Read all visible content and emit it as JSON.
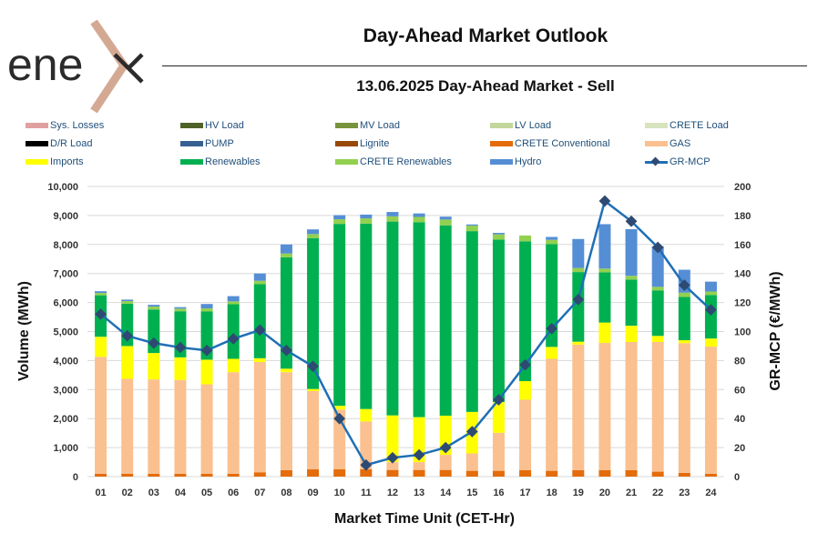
{
  "header": {
    "logo_text": "enex",
    "title": "Day-Ahead Market Outlook",
    "subtitle": "13.06.2025  Day-Ahead Market - Sell"
  },
  "legend": [
    {
      "label": "Sys. Losses",
      "color": "#e0a0a0",
      "kind": "bar"
    },
    {
      "label": "HV Load",
      "color": "#4f6228",
      "kind": "bar"
    },
    {
      "label": "MV Load",
      "color": "#77933c",
      "kind": "bar"
    },
    {
      "label": "LV Load",
      "color": "#c3d69b",
      "kind": "bar"
    },
    {
      "label": "CRETE Load",
      "color": "#d7e4bd",
      "kind": "bar"
    },
    {
      "label": "D/R Load",
      "color": "#000000",
      "kind": "bar"
    },
    {
      "label": "PUMP",
      "color": "#376092",
      "kind": "bar"
    },
    {
      "label": "Lignite",
      "color": "#984807",
      "kind": "bar"
    },
    {
      "label": "CRETE Conventional",
      "color": "#e46c0a",
      "kind": "bar"
    },
    {
      "label": "GAS",
      "color": "#fac090",
      "kind": "bar"
    },
    {
      "label": "Imports",
      "color": "#ffff00",
      "kind": "bar"
    },
    {
      "label": "Renewables",
      "color": "#00b050",
      "kind": "bar"
    },
    {
      "label": "CRETE Renewables",
      "color": "#92d050",
      "kind": "bar"
    },
    {
      "label": "Hydro",
      "color": "#558ed5",
      "kind": "bar"
    },
    {
      "label": "GR-MCP",
      "color": "#1f6fb5",
      "kind": "line"
    }
  ],
  "chart_data": {
    "type": "bar",
    "stacked": true,
    "title": "13.06.2025  Day-Ahead Market - Sell",
    "xlabel": "Market Time Unit (CET-Hr)",
    "ylabel": "Volume (MWh)",
    "y2label": "GR-MCP (€/MWh)",
    "ylim": [
      0,
      10000
    ],
    "y2lim": [
      0,
      200
    ],
    "yticks": [
      "0",
      "1,000",
      "2,000",
      "3,000",
      "4,000",
      "5,000",
      "6,000",
      "7,000",
      "8,000",
      "9,000",
      "10,000"
    ],
    "y2ticks": [
      "0",
      "20",
      "40",
      "60",
      "80",
      "100",
      "120",
      "140",
      "160",
      "180",
      "200"
    ],
    "grid": true,
    "legend_position": "top",
    "categories": [
      "01",
      "02",
      "03",
      "04",
      "05",
      "06",
      "07",
      "08",
      "09",
      "10",
      "11",
      "12",
      "13",
      "14",
      "15",
      "16",
      "17",
      "18",
      "19",
      "20",
      "21",
      "22",
      "23",
      "24"
    ],
    "series": [
      {
        "name": "CRETE Conventional",
        "color": "#e46c0a",
        "values": [
          100,
          100,
          100,
          100,
          100,
          100,
          150,
          220,
          250,
          250,
          250,
          230,
          230,
          230,
          200,
          200,
          220,
          200,
          220,
          220,
          220,
          170,
          130,
          100
        ]
      },
      {
        "name": "GAS",
        "color": "#fac090",
        "values": [
          4030,
          3270,
          3250,
          3230,
          3080,
          3500,
          3800,
          3380,
          2700,
          2060,
          1650,
          270,
          270,
          520,
          600,
          1310,
          2430,
          3860,
          4330,
          4390,
          4420,
          4470,
          4470,
          4380
        ]
      },
      {
        "name": "Imports",
        "color": "#ffff00",
        "values": [
          690,
          1130,
          910,
          780,
          850,
          460,
          130,
          120,
          70,
          130,
          430,
          1610,
          1550,
          1350,
          1430,
          1060,
          640,
          410,
          100,
          700,
          560,
          210,
          100,
          280
        ]
      },
      {
        "name": "Renewables",
        "color": "#00b050",
        "values": [
          1430,
          1460,
          1500,
          1590,
          1660,
          1880,
          2550,
          3840,
          5200,
          6270,
          6390,
          6680,
          6720,
          6560,
          6230,
          5600,
          4820,
          3540,
          2400,
          1730,
          1590,
          1570,
          1490,
          1500
        ]
      },
      {
        "name": "CRETE Renewables",
        "color": "#92d050",
        "values": [
          80,
          90,
          100,
          90,
          110,
          100,
          120,
          130,
          140,
          160,
          180,
          180,
          180,
          200,
          190,
          180,
          200,
          150,
          140,
          130,
          130,
          120,
          150,
          120
        ]
      },
      {
        "name": "Hydro",
        "color": "#558ed5",
        "values": [
          60,
          50,
          60,
          50,
          150,
          180,
          250,
          310,
          160,
          140,
          130,
          150,
          120,
          100,
          40,
          50,
          0,
          100,
          1000,
          1530,
          1610,
          1400,
          790,
          340
        ]
      }
    ],
    "line_series": {
      "name": "GR-MCP",
      "axis": "right",
      "color": "#1f6fb5",
      "marker_color": "#2e4a72",
      "values": [
        112,
        97,
        92,
        89,
        87,
        95,
        101,
        87,
        76,
        40,
        8,
        13,
        15,
        20,
        31,
        53,
        77,
        102,
        122,
        190,
        176,
        158,
        132,
        115
      ]
    }
  }
}
